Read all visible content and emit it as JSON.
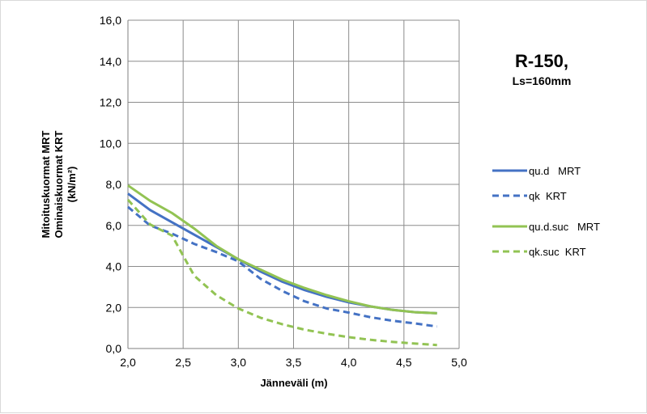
{
  "chart_data": {
    "type": "line",
    "title": "R-150,",
    "subtitle": "Ls=160mm",
    "xlabel": "Jänneväli (m)",
    "ylabel_lines": [
      "Mitoituskuormat MRT",
      "Ominaiskuormat KRT",
      "(kN/m²)"
    ],
    "xlim": [
      2.0,
      5.0
    ],
    "ylim": [
      0.0,
      16.0
    ],
    "x_ticks": [
      2.0,
      2.5,
      3.0,
      3.5,
      4.0,
      4.5,
      5.0
    ],
    "x_tick_labels": [
      "2,0",
      "2,5",
      "3,0",
      "3,5",
      "4,0",
      "4,5",
      "5,0"
    ],
    "y_ticks": [
      0,
      2,
      4,
      6,
      8,
      10,
      12,
      14,
      16
    ],
    "y_tick_labels": [
      "0,0",
      "2,0",
      "4,0",
      "6,0",
      "8,0",
      "10,0",
      "12,0",
      "14,0",
      "16,0"
    ],
    "grid": true,
    "legend_position": "right",
    "x": [
      2.0,
      2.2,
      2.4,
      2.6,
      2.8,
      3.0,
      3.2,
      3.4,
      3.6,
      3.8,
      4.0,
      4.2,
      4.4,
      4.6,
      4.8
    ],
    "series": [
      {
        "name": "qu.d   MRT",
        "color": "#4472c4",
        "dash": "solid",
        "values": [
          7.55,
          6.75,
          6.15,
          5.55,
          4.95,
          4.35,
          3.75,
          3.25,
          2.85,
          2.52,
          2.25,
          2.05,
          1.88,
          1.77,
          1.72
        ]
      },
      {
        "name": "qk  KRT",
        "color": "#4472c4",
        "dash": "dashed",
        "values": [
          6.9,
          6.0,
          5.6,
          5.1,
          4.7,
          4.25,
          3.4,
          2.8,
          2.3,
          1.95,
          1.75,
          1.52,
          1.35,
          1.22,
          1.07
        ]
      },
      {
        "name": "qu.d.suc   MRT",
        "color": "#92c353",
        "dash": "solid",
        "values": [
          7.95,
          7.2,
          6.6,
          5.85,
          5.0,
          4.35,
          3.85,
          3.35,
          2.95,
          2.6,
          2.3,
          2.05,
          1.88,
          1.77,
          1.72
        ]
      },
      {
        "name": "qk.suc  KRT",
        "color": "#92c353",
        "dash": "dashed",
        "values": [
          7.25,
          6.05,
          5.5,
          3.55,
          2.6,
          1.95,
          1.5,
          1.18,
          0.92,
          0.72,
          0.55,
          0.42,
          0.32,
          0.24,
          0.17
        ]
      }
    ]
  }
}
